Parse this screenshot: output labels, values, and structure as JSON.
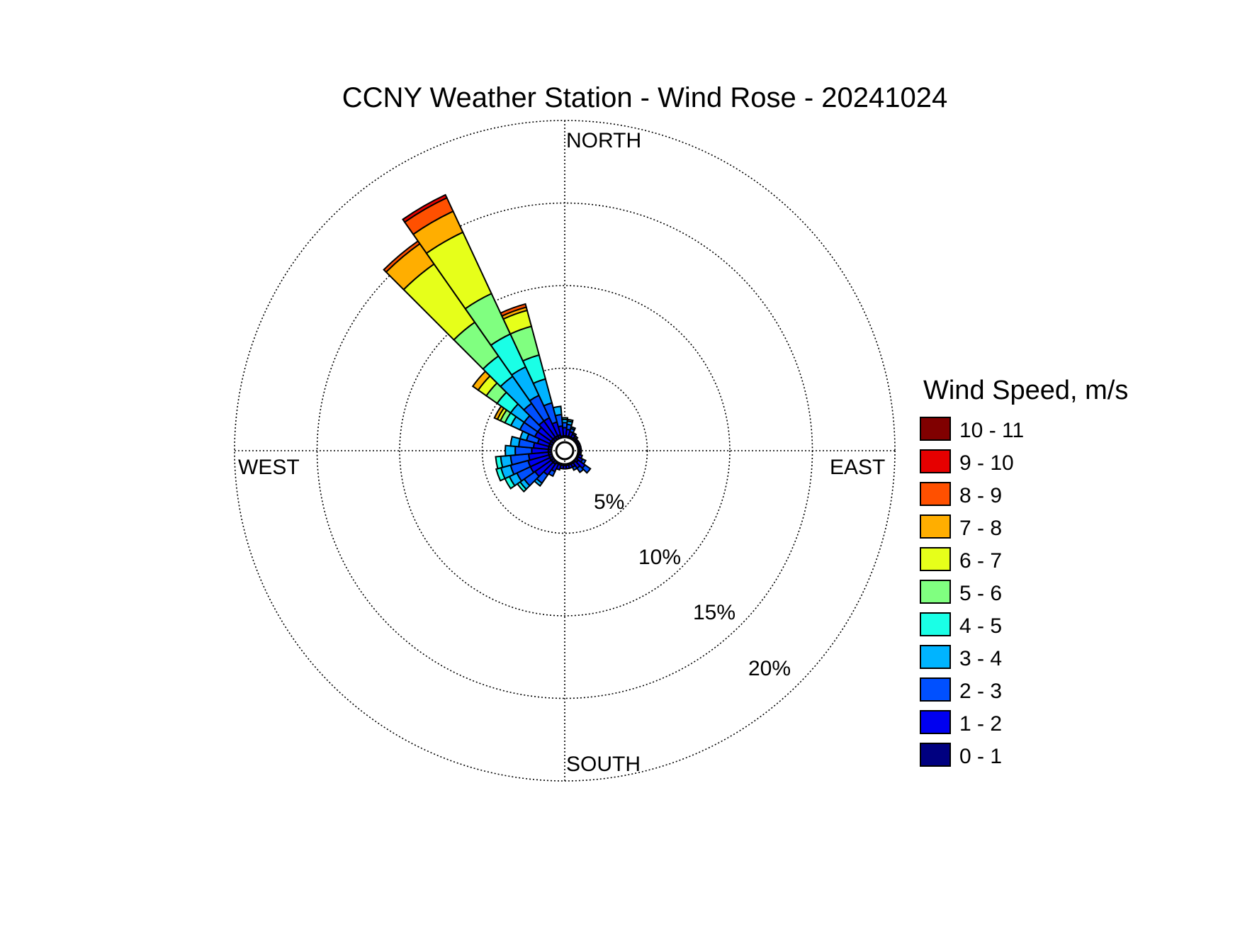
{
  "chart_data": {
    "type": "windrose",
    "title": "CCNY Weather Station - Wind Rose - 20241024",
    "direction_labels": {
      "north": "NORTH",
      "east": "EAST",
      "south": "SOUTH",
      "west": "WEST"
    },
    "radial_ticks": [
      5,
      10,
      15,
      20
    ],
    "radial_tick_labels": [
      "5%",
      "10%",
      "15%",
      "20%"
    ],
    "radial_max": 20,
    "grid": true,
    "legend": {
      "title": "Wind Speed, m/s",
      "placement": "right",
      "bins": [
        {
          "label": "10 - 11",
          "color": "#800000"
        },
        {
          "label": "9 - 10",
          "color": "#e60000"
        },
        {
          "label": "8 - 9",
          "color": "#ff5000"
        },
        {
          "label": "7 - 8",
          "color": "#ffae00"
        },
        {
          "label": "6 - 7",
          "color": "#e6ff1a"
        },
        {
          "label": "5 - 6",
          "color": "#80ff80"
        },
        {
          "label": "4 - 5",
          "color": "#1affe6"
        },
        {
          "label": "3 - 4",
          "color": "#00b4ff"
        },
        {
          "label": "2 - 3",
          "color": "#0050ff"
        },
        {
          "label": "1 - 2",
          "color": "#0000f0"
        },
        {
          "label": "0 - 1",
          "color": "#000080"
        }
      ]
    },
    "speed_bins_low_to_high": [
      "0 - 1",
      "1 - 2",
      "2 - 3",
      "3 - 4",
      "4 - 5",
      "5 - 6",
      "6 - 7",
      "7 - 8",
      "8 - 9",
      "9 - 10",
      "10 - 11"
    ],
    "calm_percent": 0.8,
    "sector_width_deg": 10,
    "sectors": [
      {
        "direction_deg": 0,
        "cumulative_percent": [
          0.9,
          1.4,
          1.7,
          1.9,
          2.0
        ]
      },
      {
        "direction_deg": 10,
        "cumulative_percent": [
          0.9,
          1.3,
          1.6,
          1.8,
          1.9
        ]
      },
      {
        "direction_deg": 20,
        "cumulative_percent": [
          0.9,
          1.2,
          1.4,
          1.5
        ]
      },
      {
        "direction_deg": 30,
        "cumulative_percent": [
          0.9,
          1.1,
          1.2
        ]
      },
      {
        "direction_deg": 40,
        "cumulative_percent": [
          0.9,
          1.0,
          1.1
        ]
      },
      {
        "direction_deg": 50,
        "cumulative_percent": [
          0.9,
          1.0
        ]
      },
      {
        "direction_deg": 60,
        "cumulative_percent": [
          0.9,
          1.0
        ]
      },
      {
        "direction_deg": 70,
        "cumulative_percent": [
          0.9,
          1.0
        ]
      },
      {
        "direction_deg": 80,
        "cumulative_percent": [
          0.9,
          1.0
        ]
      },
      {
        "direction_deg": 90,
        "cumulative_percent": [
          0.9,
          1.0
        ]
      },
      {
        "direction_deg": 100,
        "cumulative_percent": [
          0.9,
          1.0
        ]
      },
      {
        "direction_deg": 110,
        "cumulative_percent": [
          0.9,
          1.1
        ]
      },
      {
        "direction_deg": 120,
        "cumulative_percent": [
          0.9,
          1.2,
          1.4
        ]
      },
      {
        "direction_deg": 130,
        "cumulative_percent": [
          1.0,
          1.5,
          1.9
        ]
      },
      {
        "direction_deg": 140,
        "cumulative_percent": [
          0.9,
          1.3,
          1.6
        ]
      },
      {
        "direction_deg": 150,
        "cumulative_percent": [
          0.9,
          1.1,
          1.3
        ]
      },
      {
        "direction_deg": 160,
        "cumulative_percent": [
          0.9,
          1.1
        ]
      },
      {
        "direction_deg": 170,
        "cumulative_percent": [
          0.9,
          1.1
        ]
      },
      {
        "direction_deg": 180,
        "cumulative_percent": [
          0.9,
          1.1
        ]
      },
      {
        "direction_deg": 190,
        "cumulative_percent": [
          0.9,
          1.1
        ]
      },
      {
        "direction_deg": 200,
        "cumulative_percent": [
          0.9,
          1.2
        ]
      },
      {
        "direction_deg": 210,
        "cumulative_percent": [
          0.9,
          1.4,
          1.7
        ]
      },
      {
        "direction_deg": 220,
        "cumulative_percent": [
          1.0,
          1.8,
          2.4,
          2.6
        ]
      },
      {
        "direction_deg": 230,
        "cumulative_percent": [
          1.0,
          2.2,
          3.0,
          3.3,
          3.5
        ]
      },
      {
        "direction_deg": 240,
        "cumulative_percent": [
          1.0,
          2.3,
          3.2,
          3.7,
          4.0
        ]
      },
      {
        "direction_deg": 250,
        "cumulative_percent": [
          1.0,
          2.3,
          3.4,
          4.0,
          4.3
        ]
      },
      {
        "direction_deg": 260,
        "cumulative_percent": [
          1.0,
          2.2,
          3.3,
          3.9,
          4.2
        ]
      },
      {
        "direction_deg": 270,
        "cumulative_percent": [
          1.0,
          2.0,
          3.0,
          3.6
        ]
      },
      {
        "direction_deg": 280,
        "cumulative_percent": [
          1.0,
          1.9,
          2.8,
          3.3
        ]
      },
      {
        "direction_deg": 290,
        "cumulative_percent": [
          1.0,
          1.7,
          2.4,
          2.8
        ]
      },
      {
        "direction_deg": 300,
        "cumulative_percent": [
          1.0,
          2.0,
          3.0,
          3.6,
          4.0,
          4.3,
          4.5,
          4.7
        ]
      },
      {
        "direction_deg": 310,
        "cumulative_percent": [
          1.0,
          2.0,
          3.0,
          4.0,
          5.0,
          5.8,
          6.4,
          6.8
        ]
      },
      {
        "direction_deg": 320,
        "cumulative_percent": [
          1.0,
          2.2,
          3.5,
          5.5,
          7.0,
          9.5,
          13.8,
          15.3,
          15.5
        ]
      },
      {
        "direction_deg": 330,
        "cumulative_percent": [
          1.0,
          2.2,
          3.7,
          5.6,
          7.8,
          10.5,
          14.6,
          16.0,
          16.9,
          17.1
        ]
      },
      {
        "direction_deg": 340,
        "cumulative_percent": [
          1.0,
          1.8,
          3.0,
          4.5,
          6.0,
          7.8,
          8.8,
          9.0,
          9.2
        ]
      },
      {
        "direction_deg": 350,
        "cumulative_percent": [
          0.9,
          1.5,
          2.2,
          2.7
        ]
      }
    ]
  }
}
